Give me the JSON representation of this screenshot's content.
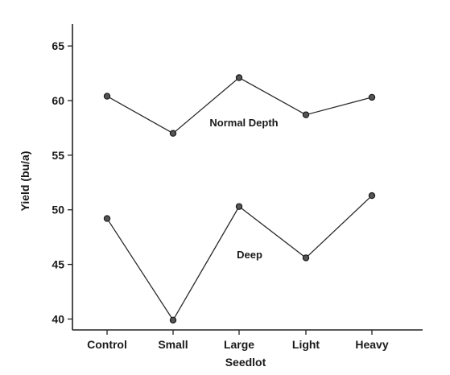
{
  "chart_data": {
    "type": "line",
    "xlabel": "Seedlot",
    "ylabel": "Yield (bu/a)",
    "categories": [
      "Control",
      "Small",
      "Large",
      "Light",
      "Heavy"
    ],
    "ylim": [
      39,
      67
    ],
    "yticks": [
      40,
      45,
      50,
      55,
      60,
      65
    ],
    "grid": false,
    "series": [
      {
        "name": "Normal Depth",
        "values": [
          60.4,
          57.0,
          62.1,
          58.7,
          60.3
        ]
      },
      {
        "name": "Deep",
        "values": [
          49.2,
          39.9,
          50.3,
          45.6,
          51.3
        ]
      }
    ],
    "colors": {
      "line": "#2a2a2a",
      "marker": "#555555"
    }
  }
}
